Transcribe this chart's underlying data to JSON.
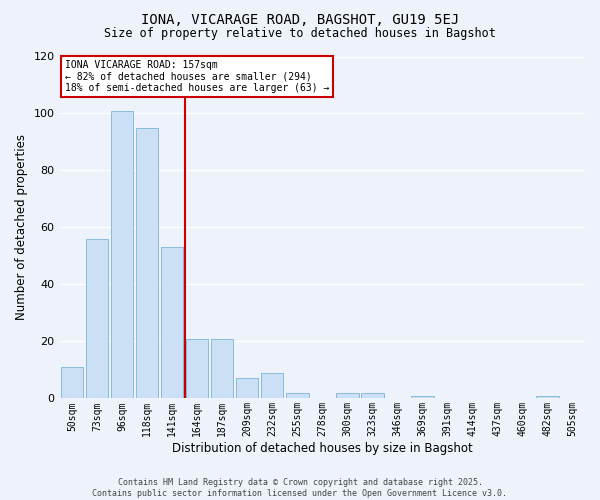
{
  "title": "IONA, VICARAGE ROAD, BAGSHOT, GU19 5EJ",
  "subtitle": "Size of property relative to detached houses in Bagshot",
  "xlabel": "Distribution of detached houses by size in Bagshot",
  "ylabel": "Number of detached properties",
  "bar_labels": [
    "50sqm",
    "73sqm",
    "96sqm",
    "118sqm",
    "141sqm",
    "164sqm",
    "187sqm",
    "209sqm",
    "232sqm",
    "255sqm",
    "278sqm",
    "300sqm",
    "323sqm",
    "346sqm",
    "369sqm",
    "391sqm",
    "414sqm",
    "437sqm",
    "460sqm",
    "482sqm",
    "505sqm"
  ],
  "bar_values": [
    11,
    56,
    101,
    95,
    53,
    21,
    21,
    7,
    9,
    2,
    0,
    2,
    2,
    0,
    1,
    0,
    0,
    0,
    0,
    1,
    0
  ],
  "bar_color": "#cce0f5",
  "bar_edge_color": "#88bbdd",
  "ylim": [
    0,
    120
  ],
  "yticks": [
    0,
    20,
    40,
    60,
    80,
    100,
    120
  ],
  "vline_x": 4.5,
  "vline_color": "#cc0000",
  "annotation_title": "IONA VICARAGE ROAD: 157sqm",
  "annotation_line1": "← 82% of detached houses are smaller (294)",
  "annotation_line2": "18% of semi-detached houses are larger (63) →",
  "annotation_box_color": "#ffffff",
  "annotation_box_edge": "#cc0000",
  "background_color": "#eef2fa",
  "grid_color": "#ffffff",
  "footer1": "Contains HM Land Registry data © Crown copyright and database right 2025.",
  "footer2": "Contains public sector information licensed under the Open Government Licence v3.0."
}
